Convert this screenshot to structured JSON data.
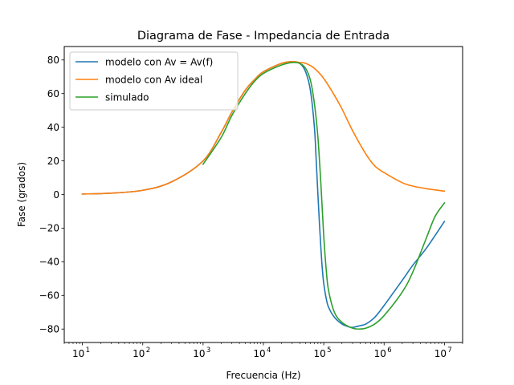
{
  "chart_data": {
    "type": "line",
    "title": "Diagrama de Fase - Impedancia de Entrada",
    "xlabel": "Frecuencia (Hz)",
    "ylabel": "Fase (grados)",
    "xscale": "log",
    "xlim": [
      5,
      20000000
    ],
    "ylim": [
      -88,
      88
    ],
    "x_tick_labels": [
      {
        "base": "10",
        "exp": "1"
      },
      {
        "base": "10",
        "exp": "2"
      },
      {
        "base": "10",
        "exp": "3"
      },
      {
        "base": "10",
        "exp": "4"
      },
      {
        "base": "10",
        "exp": "5"
      },
      {
        "base": "10",
        "exp": "6"
      },
      {
        "base": "10",
        "exp": "7"
      }
    ],
    "y_ticks": [
      -80,
      -60,
      -40,
      -20,
      0,
      20,
      40,
      60,
      80
    ],
    "y_tick_labels": [
      "−80",
      "−60",
      "−40",
      "−20",
      "0",
      "20",
      "40",
      "60",
      "80"
    ],
    "legend_position": "upper-left",
    "series": [
      {
        "name": "modelo con Av = Av(f)",
        "color": "#1f77b4",
        "x": [
          10,
          30,
          100,
          300,
          1000,
          2000,
          3000,
          5000,
          7000,
          10000,
          20000,
          30000,
          40000,
          50000,
          60000,
          70000,
          75000,
          80000,
          85000,
          90000,
          95000,
          100000,
          110000,
          120000,
          150000,
          200000,
          250000,
          300000,
          400000,
          500000,
          700000,
          1000000,
          2000000,
          3000000,
          5000000,
          10000000
        ],
        "y": [
          0.3,
          0.8,
          2.5,
          7.5,
          20,
          37,
          49,
          62,
          68,
          73,
          78,
          79,
          78,
          73,
          62,
          40,
          20,
          0,
          -18,
          -33,
          -45,
          -53,
          -62,
          -67,
          -73,
          -77,
          -78.5,
          -79,
          -78,
          -77,
          -73,
          -66,
          -51,
          -42,
          -32,
          -16
        ]
      },
      {
        "name": "modelo con Av ideal",
        "color": "#ff7f0e",
        "x": [
          10,
          30,
          100,
          300,
          1000,
          2000,
          3000,
          5000,
          7000,
          10000,
          20000,
          30000,
          40000,
          50000,
          70000,
          100000,
          150000,
          200000,
          300000,
          500000,
          700000,
          1000000,
          2000000,
          3000000,
          5000000,
          10000000
        ],
        "y": [
          0.3,
          0.8,
          2.5,
          7.5,
          20,
          37,
          49,
          62,
          68,
          73,
          78,
          79,
          78.5,
          78,
          75,
          69,
          59,
          51,
          38,
          24,
          17,
          13,
          7,
          5,
          3.5,
          2
        ]
      },
      {
        "name": "simulado",
        "color": "#2ca02c",
        "x": [
          1000,
          2000,
          3000,
          5000,
          7000,
          10000,
          20000,
          30000,
          40000,
          50000,
          60000,
          70000,
          80000,
          90000,
          100000,
          110000,
          120000,
          150000,
          200000,
          300000,
          400000,
          500000,
          700000,
          1000000,
          2000000,
          3000000,
          5000000,
          7000000,
          10000000
        ],
        "y": [
          18,
          34,
          47,
          60,
          67,
          72,
          77,
          78.5,
          78,
          75,
          68,
          54,
          34,
          5,
          -25,
          -45,
          -57,
          -70,
          -76,
          -79.5,
          -80,
          -79.5,
          -77,
          -72,
          -58,
          -46,
          -26,
          -13,
          -5
        ]
      }
    ]
  }
}
